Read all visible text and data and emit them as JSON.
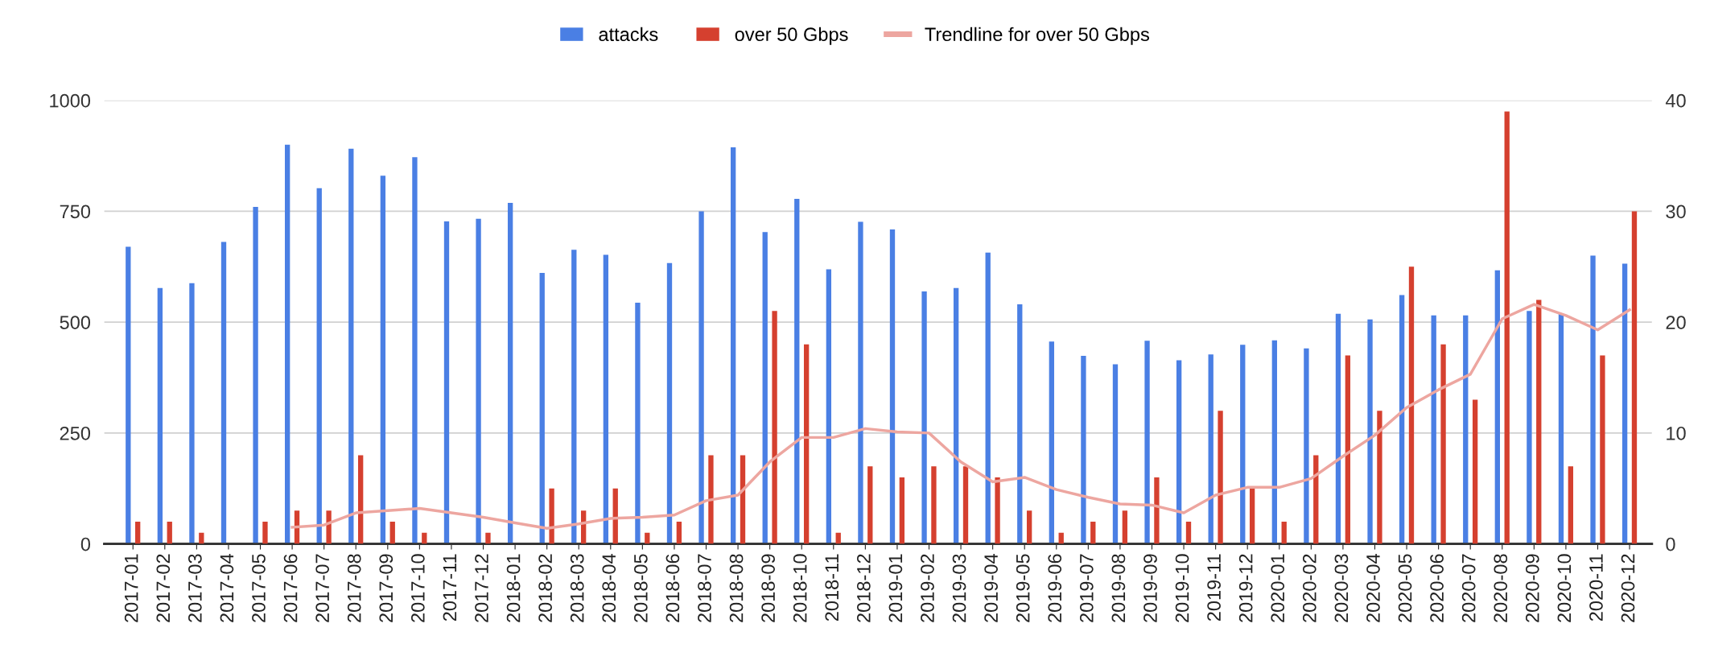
{
  "chart_data": {
    "type": "bar",
    "categories": [
      "2017-01",
      "2017-02",
      "2017-03",
      "2017-04",
      "2017-05",
      "2017-06",
      "2017-07",
      "2017-08",
      "2017-09",
      "2017-10",
      "2017-11",
      "2017-12",
      "2018-01",
      "2018-02",
      "2018-03",
      "2018-04",
      "2018-05",
      "2018-06",
      "2018-07",
      "2018-08",
      "2018-09",
      "2018-10",
      "2018-11",
      "2018-12",
      "2019-01",
      "2019-02",
      "2019-03",
      "2019-04",
      "2019-05",
      "2019-06",
      "2019-07",
      "2019-08",
      "2019-09",
      "2019-10",
      "2019-11",
      "2019-12",
      "2020-01",
      "2020-02",
      "2020-03",
      "2020-04",
      "2020-05",
      "2020-06",
      "2020-07",
      "2020-08",
      "2020-09",
      "2020-10",
      "2020-11",
      "2020-12"
    ],
    "series": [
      {
        "name": "attacks",
        "color": "#4a7fe4",
        "values": [
          670,
          577,
          588,
          681,
          760,
          900,
          802,
          891,
          830,
          872,
          727,
          733,
          769,
          611,
          663,
          652,
          544,
          633,
          750,
          894,
          703,
          778,
          619,
          726,
          709,
          569,
          577,
          657,
          540,
          456,
          424,
          405,
          458,
          414,
          427,
          449,
          459,
          441,
          519,
          506,
          561,
          515,
          515,
          617,
          525,
          519,
          650,
          632
        ]
      },
      {
        "name": "over 50 Gbps",
        "color": "#d5402f",
        "axis": "y2",
        "values": [
          2,
          2,
          1,
          0,
          2,
          3,
          3,
          8,
          2,
          1,
          0,
          1,
          0,
          5,
          3,
          5,
          1,
          2,
          8,
          8,
          21,
          18,
          1,
          7,
          6,
          7,
          7,
          6,
          3,
          1,
          2,
          3,
          6,
          2,
          12,
          5,
          2,
          8,
          17,
          12,
          25,
          18,
          13,
          39,
          22,
          7,
          17,
          30
        ]
      },
      {
        "name": "Trendline for over 50 Gbps",
        "color": "#eda6a0",
        "type": "line",
        "axis": "y2",
        "values": [
          null,
          null,
          null,
          null,
          null,
          1.5,
          1.7,
          2.8,
          3.0,
          3.2,
          2.8,
          2.4,
          1.9,
          1.4,
          1.8,
          2.3,
          2.4,
          2.6,
          3.9,
          4.4,
          7.4,
          9.6,
          9.6,
          10.4,
          10.1,
          10.0,
          7.4,
          5.6,
          6.0,
          4.9,
          4.2,
          3.6,
          3.5,
          2.8,
          4.4,
          5.1,
          5.1,
          5.9,
          7.9,
          9.8,
          12.3,
          13.9,
          15.3,
          20.3,
          21.6,
          20.6,
          19.3,
          21.1
        ]
      }
    ],
    "ylim": [
      0,
      1000
    ],
    "yticks": [
      0,
      250,
      500,
      750,
      1000
    ],
    "y2lim": [
      0,
      40
    ],
    "y2ticks": [
      0,
      10,
      20,
      30,
      40
    ],
    "grid": "y",
    "legend": "top"
  }
}
